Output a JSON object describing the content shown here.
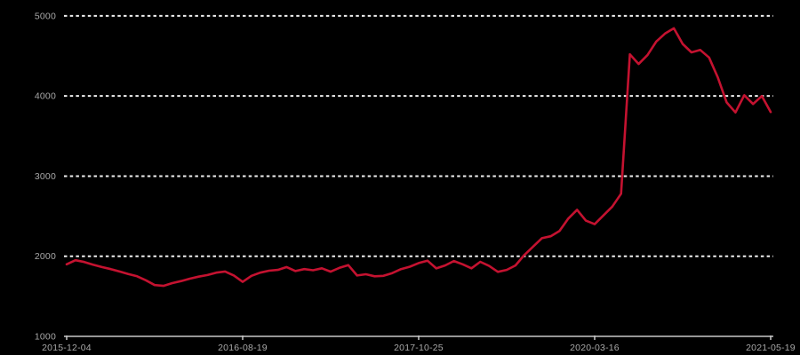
{
  "chart_data": {
    "type": "line",
    "title": "",
    "xlabel": "",
    "ylabel": "",
    "legend": "none",
    "grid": "horizontal dotted gridlines at 2000-5000, solid baseline axis at 1000",
    "background_color": "#000000",
    "line_color": "#c41230",
    "gridline_color": "#efefef",
    "axis_color": "#c8c8c8",
    "label_color": "#a8a8a8",
    "ylim": [
      1000,
      5000
    ],
    "y_ticks": [
      1000,
      2000,
      3000,
      4000,
      5000
    ],
    "y_tick_labels": [
      "1000",
      "2000",
      "3000",
      "4000",
      "5000"
    ],
    "x_tick_labels": [
      "2015-12-04",
      "2016-08-19",
      "2017-10-25",
      "2020-03-16",
      "2021-05-19"
    ],
    "x_tick_indices": [
      0,
      20,
      40,
      60,
      80
    ],
    "series": [
      {
        "name": "value",
        "values": [
          1900,
          1950,
          1928,
          1895,
          1865,
          1840,
          1810,
          1778,
          1750,
          1700,
          1640,
          1630,
          1665,
          1690,
          1720,
          1745,
          1765,
          1795,
          1810,
          1760,
          1680,
          1755,
          1795,
          1820,
          1830,
          1865,
          1815,
          1840,
          1825,
          1850,
          1808,
          1855,
          1890,
          1760,
          1775,
          1750,
          1755,
          1790,
          1840,
          1870,
          1915,
          1945,
          1848,
          1885,
          1940,
          1900,
          1850,
          1930,
          1880,
          1805,
          1830,
          1885,
          2015,
          2120,
          2225,
          2250,
          2315,
          2470,
          2580,
          2445,
          2400,
          2510,
          2620,
          2780,
          4520,
          4400,
          4510,
          4680,
          4780,
          4845,
          4650,
          4545,
          4575,
          4480,
          4230,
          3920,
          3795,
          4010,
          3900,
          4000,
          3800
        ]
      }
    ]
  }
}
